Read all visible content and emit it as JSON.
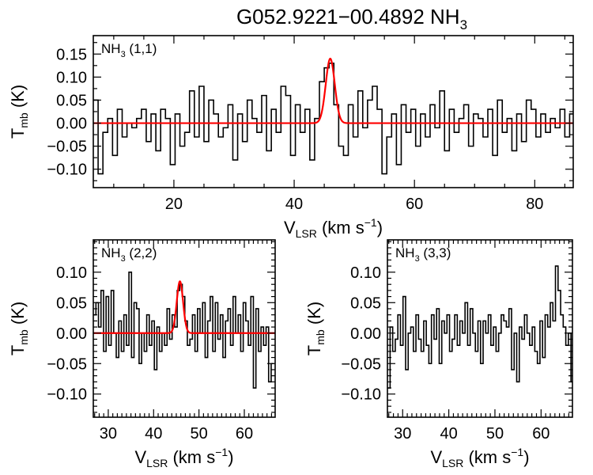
{
  "chart_data": {
    "title": "G052.9221−00.4892 NH",
    "title_sub": "3",
    "colors": {
      "spectrum": "#000000",
      "fit": "#ff0000",
      "frame": "#000000"
    },
    "panels": [
      {
        "type": "line",
        "label": "NH",
        "label_sub": "3",
        "label_suffix": " (1,1)",
        "xlabel": "V",
        "xlabel_sub": "LSR",
        "xlabel_unit": " (km s",
        "xlabel_sup": "−1",
        "xlabel_end": ")",
        "ylabel": "T",
        "ylabel_sub": "mb",
        "ylabel_unit": " (K)",
        "xlim": [
          6.6,
          86.4
        ],
        "ylim": [
          -0.14,
          0.19
        ],
        "xticks": [
          20,
          40,
          60,
          80
        ],
        "xminor": 5,
        "yticks": [
          -0.1,
          -0.05,
          0.0,
          0.05,
          0.1,
          0.15
        ],
        "yminor": 0.025,
        "yticklabels": [
          "−0.10",
          "−0.05",
          "0.00",
          "0.05",
          "0.10",
          "0.15"
        ],
        "x0": 7.0,
        "dx": 0.8,
        "values": [
          0.05,
          -0.11,
          -0.02,
          0.01,
          -0.07,
          0.03,
          -0.03,
          0.0,
          -0.01,
          0.01,
          0.03,
          -0.04,
          0.02,
          -0.06,
          0.03,
          0.01,
          -0.09,
          0.02,
          -0.05,
          -0.02,
          0.07,
          -0.03,
          0.08,
          -0.04,
          0.05,
          0.02,
          -0.03,
          -0.01,
          0.04,
          -0.08,
          0.02,
          -0.04,
          0.05,
          0.01,
          -0.02,
          0.06,
          -0.06,
          0.03,
          -0.02,
          0.08,
          0.06,
          -0.07,
          0.04,
          -0.02,
          0.03,
          -0.08,
          0.01,
          0.09,
          0.12,
          0.13,
          0.04,
          -0.05,
          -0.07,
          0.04,
          -0.03,
          0.07,
          -0.01,
          0.05,
          0.08,
          0.03,
          -0.11,
          -0.03,
          0.02,
          -0.09,
          0.04,
          -0.02,
          0.03,
          -0.05,
          0.02,
          -0.03,
          0.04,
          -0.01,
          0.07,
          -0.06,
          0.03,
          -0.02,
          0.01,
          0.04,
          -0.05,
          0.02,
          0.01,
          -0.03,
          0.03,
          -0.07,
          0.05,
          -0.02,
          0.01,
          -0.06,
          0.02,
          -0.04,
          0.05,
          0.03,
          -0.03,
          0.02,
          -0.02,
          0.01,
          -0.01,
          0.03,
          -0.03,
          0.02
        ],
        "fit": {
          "amplitude": 0.14,
          "center": 46.0,
          "sigma": 0.75
        }
      },
      {
        "type": "line",
        "label": "NH",
        "label_sub": "3",
        "label_suffix": " (2,2)",
        "xlabel": "V",
        "xlabel_sub": "LSR",
        "xlabel_unit": " (km s",
        "xlabel_sup": "−1",
        "xlabel_end": ")",
        "ylabel": "T",
        "ylabel_sub": "mb",
        "ylabel_unit": " (K)",
        "xlim": [
          26.7,
          66.8
        ],
        "ylim": [
          -0.138,
          0.153
        ],
        "xticks": [
          30,
          40,
          50,
          60
        ],
        "xminor": 1,
        "yticks": [
          -0.1,
          -0.05,
          0.0,
          0.05,
          0.1
        ],
        "yminor": 0.01,
        "yticklabels": [
          "−0.10",
          "−0.05",
          "0.00",
          "0.05",
          "0.10"
        ],
        "x0": 27.0,
        "dx": 0.56,
        "values": [
          0.03,
          0.05,
          0.01,
          0.07,
          -0.03,
          0.06,
          -0.02,
          0.07,
          0.0,
          -0.04,
          0.02,
          -0.03,
          0.03,
          -0.02,
          0.1,
          -0.04,
          0.05,
          0.04,
          -0.05,
          0.0,
          -0.03,
          0.03,
          -0.02,
          0.02,
          -0.06,
          0.01,
          -0.03,
          0.0,
          -0.02,
          0.04,
          -0.01,
          0.03,
          0.01,
          0.07,
          0.08,
          0.06,
          0.02,
          -0.02,
          -0.01,
          0.03,
          -0.03,
          0.04,
          0.0,
          0.05,
          -0.04,
          0.02,
          0.06,
          -0.03,
          0.05,
          -0.01,
          0.03,
          -0.04,
          0.02,
          0.04,
          -0.02,
          0.06,
          0.0,
          0.03,
          -0.03,
          0.05,
          0.02,
          -0.02,
          0.06,
          -0.09,
          0.04,
          -0.03,
          0.01,
          -0.02,
          0.01,
          -0.08,
          -0.05
        ],
        "fit": {
          "amplitude": 0.085,
          "center": 45.8,
          "sigma": 0.7
        }
      },
      {
        "type": "line",
        "label": "NH",
        "label_sub": "3",
        "label_suffix": " (3,3)",
        "xlabel": "V",
        "xlabel_sub": "LSR",
        "xlabel_unit": " (km s",
        "xlabel_sup": "−1",
        "xlabel_end": ")",
        "ylabel": "T",
        "ylabel_sub": "mb",
        "ylabel_unit": " (K)",
        "xlim": [
          26.7,
          66.8
        ],
        "ylim": [
          -0.138,
          0.153
        ],
        "xticks": [
          30,
          40,
          50,
          60
        ],
        "xminor": 1,
        "yticks": [
          -0.1,
          -0.05,
          0.0,
          0.05,
          0.1
        ],
        "yminor": 0.01,
        "yticklabels": [
          "−0.10",
          "−0.05",
          "0.00",
          "0.05",
          "0.10"
        ],
        "x0": 27.0,
        "dx": 0.56,
        "values": [
          -0.09,
          0.01,
          -0.03,
          -0.01,
          0.03,
          -0.02,
          0.06,
          -0.06,
          0.0,
          0.01,
          -0.03,
          0.03,
          -0.01,
          -0.03,
          0.02,
          -0.02,
          -0.05,
          0.03,
          -0.01,
          0.04,
          -0.05,
          0.02,
          0.0,
          0.03,
          -0.03,
          -0.01,
          0.03,
          -0.02,
          0.02,
          0.0,
          0.05,
          -0.02,
          0.04,
          0.0,
          -0.03,
          0.02,
          -0.05,
          0.02,
          0.0,
          0.03,
          -0.02,
          0.01,
          -0.03,
          0.0,
          0.03,
          0.02,
          0.01,
          0.04,
          -0.06,
          0.0,
          -0.08,
          0.01,
          -0.01,
          0.03,
          0.0,
          -0.02,
          0.01,
          -0.03,
          -0.05,
          0.02,
          -0.04,
          0.03,
          0.01,
          0.05,
          0.02,
          0.11,
          0.07,
          0.03,
          0.01,
          -0.02,
          0.0,
          -0.08,
          -0.03,
          -0.05
        ]
      }
    ]
  }
}
